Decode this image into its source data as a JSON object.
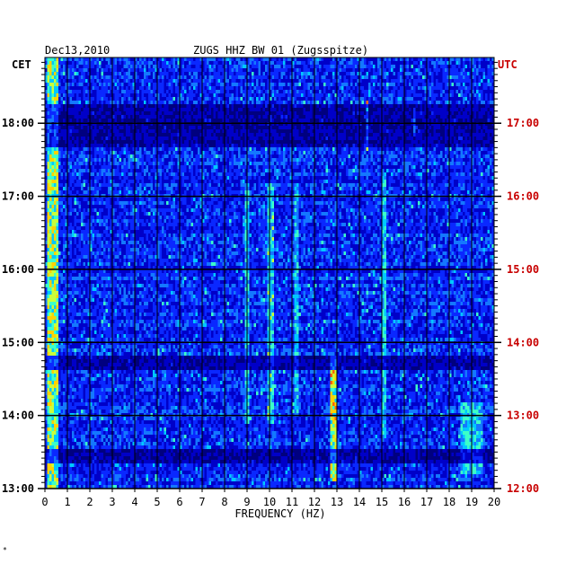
{
  "chart_data": {
    "type": "heatmap",
    "header": {
      "date": "Dec13,2010",
      "station": "ZUGS HHZ BW 01 (Zugsspitze)"
    },
    "left_label": "CET",
    "right_label": "UTC",
    "xlabel": "FREQUENCY (HZ)",
    "x_ticks": [
      "0",
      "1",
      "2",
      "3",
      "4",
      "5",
      "6",
      "7",
      "8",
      "9",
      "10",
      "11",
      "12",
      "13",
      "14",
      "15",
      "16",
      "17",
      "18",
      "19",
      "20"
    ],
    "xlim": [
      0,
      20
    ],
    "time_axis_range_cet_hours": [
      13.0,
      18.9
    ],
    "cet_ticks": [
      {
        "label": "13:00",
        "t": 13.0
      },
      {
        "label": "14:00",
        "t": 14.0
      },
      {
        "label": "15:00",
        "t": 15.0
      },
      {
        "label": "16:00",
        "t": 16.0
      },
      {
        "label": "17:00",
        "t": 17.0
      },
      {
        "label": "18:00",
        "t": 18.0
      }
    ],
    "utc_ticks": [
      {
        "label": "12:00",
        "t": 13.0
      },
      {
        "label": "13:00",
        "t": 14.0
      },
      {
        "label": "14:00",
        "t": 15.0
      },
      {
        "label": "15:00",
        "t": 16.0
      },
      {
        "label": "16:00",
        "t": 17.0
      },
      {
        "label": "17:00",
        "t": 18.0
      }
    ],
    "colormap": [
      "#00007f",
      "#0000c8",
      "#0a28ff",
      "#1478ff",
      "#00c8ff",
      "#3cffc8",
      "#c8ff3c",
      "#ffd200",
      "#ff6400",
      "#c80000"
    ],
    "features": [
      {
        "f": [
          0.1,
          0.6
        ],
        "t": [
          13.0,
          18.9
        ],
        "level": 0.75
      },
      {
        "f": [
          8.9,
          9.1
        ],
        "t": [
          13.9,
          17.2
        ],
        "level": 0.55
      },
      {
        "f": [
          9.9,
          10.2
        ],
        "t": [
          13.9,
          17.2
        ],
        "level": 0.6
      },
      {
        "f": [
          11.1,
          11.3
        ],
        "t": [
          14.0,
          17.2
        ],
        "level": 0.55
      },
      {
        "f": [
          12.7,
          13.0
        ],
        "t": [
          13.1,
          14.8
        ],
        "level": 0.8
      },
      {
        "f": [
          15.0,
          15.2
        ],
        "t": [
          13.7,
          17.3
        ],
        "level": 0.55
      },
      {
        "f": [
          18.5,
          19.5
        ],
        "t": [
          13.2,
          14.2
        ],
        "level": 0.55
      },
      {
        "f": [
          14.3,
          14.4
        ],
        "t": [
          17.6,
          18.3
        ],
        "level": 0.9
      },
      {
        "f": [
          16.4,
          16.5
        ],
        "t": [
          17.8,
          18.2
        ],
        "level": 0.85
      }
    ],
    "quiet_bands": [
      {
        "t": [
          13.35,
          13.55
        ]
      },
      {
        "t": [
          14.6,
          14.8
        ]
      },
      {
        "t": [
          17.65,
          18.25
        ]
      }
    ],
    "colors": {
      "grid": "#000000",
      "axis_text": "#000000",
      "utc_text": "#c80000"
    }
  }
}
